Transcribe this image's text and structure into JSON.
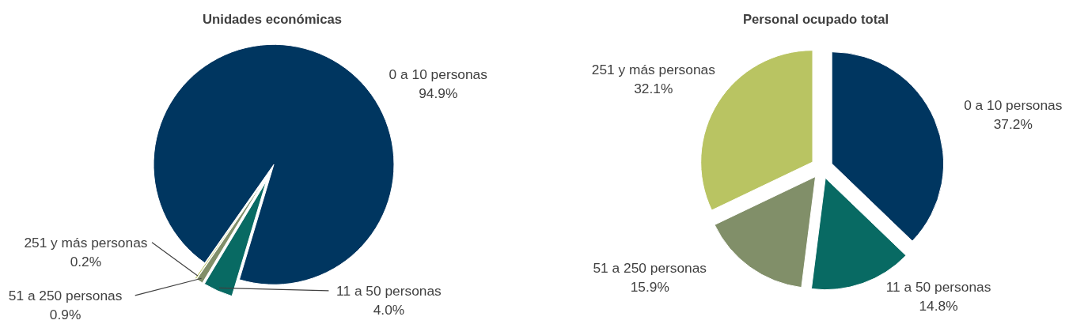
{
  "chart_data": [
    {
      "type": "pie",
      "title": "Unidades económicas",
      "categories": [
        "0 a 10 personas",
        "11 a 50 personas",
        "51 a 250 personas",
        "251 y más personas"
      ],
      "values": [
        94.9,
        4.0,
        0.9,
        0.2
      ],
      "colors": [
        "#003660",
        "#086a63",
        "#818f69",
        "#b9c462"
      ],
      "value_labels": [
        "94.9%",
        "4.0%",
        "0.9%",
        "0.2%"
      ]
    },
    {
      "type": "pie",
      "title": "Personal ocupado total",
      "categories": [
        "0 a 10 personas",
        "11 a 50 personas",
        "51 a 250 personas",
        "251 y más personas"
      ],
      "values": [
        37.2,
        14.8,
        15.9,
        32.1
      ],
      "colors": [
        "#003660",
        "#086a63",
        "#818f69",
        "#b9c462"
      ],
      "value_labels": [
        "37.2%",
        "14.8%",
        "15.9%",
        "32.1%"
      ]
    }
  ]
}
